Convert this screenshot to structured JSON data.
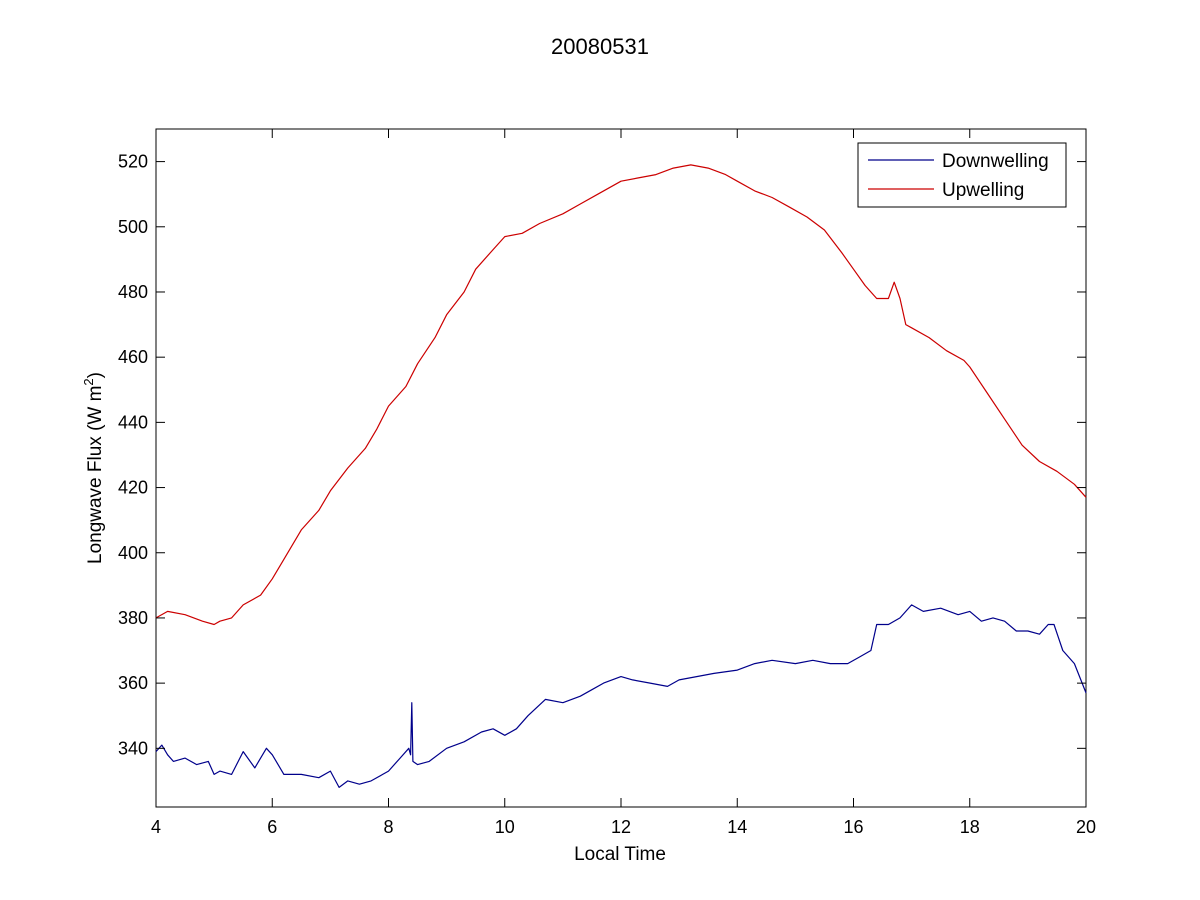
{
  "chart_data": {
    "type": "line",
    "title": "20080531",
    "xlabel": "Local Time",
    "ylabel": "Longwave Flux (W m",
    "ylabel_superscript": "2",
    "ylabel_close": ")",
    "xlim": [
      4,
      20
    ],
    "ylim": [
      322,
      530
    ],
    "xticks": [
      4,
      6,
      8,
      10,
      12,
      14,
      16,
      18,
      20
    ],
    "yticks": [
      340,
      360,
      380,
      400,
      420,
      440,
      460,
      480,
      500,
      520
    ],
    "grid": false,
    "legend_position": "top-right",
    "series": [
      {
        "name": "Downwelling",
        "color": "#00008B",
        "x": [
          4.0,
          4.1,
          4.2,
          4.3,
          4.5,
          4.7,
          4.9,
          5.0,
          5.1,
          5.3,
          5.5,
          5.7,
          5.9,
          6.0,
          6.2,
          6.5,
          6.8,
          7.0,
          7.15,
          7.3,
          7.5,
          7.7,
          8.0,
          8.2,
          8.35,
          8.38,
          8.4,
          8.42,
          8.5,
          8.7,
          9.0,
          9.3,
          9.6,
          9.8,
          10.0,
          10.2,
          10.4,
          10.7,
          11.0,
          11.3,
          11.5,
          11.7,
          12.0,
          12.2,
          12.5,
          12.8,
          13.0,
          13.3,
          13.6,
          14.0,
          14.3,
          14.6,
          15.0,
          15.3,
          15.6,
          15.9,
          16.1,
          16.3,
          16.4,
          16.6,
          16.8,
          17.0,
          17.2,
          17.5,
          17.8,
          18.0,
          18.2,
          18.4,
          18.6,
          18.8,
          19.0,
          19.2,
          19.35,
          19.45,
          19.6,
          19.8,
          20.0
        ],
        "y": [
          339,
          341,
          338,
          336,
          337,
          335,
          336,
          332,
          333,
          332,
          339,
          334,
          340,
          338,
          332,
          332,
          331,
          333,
          328,
          330,
          329,
          330,
          333,
          337,
          340,
          338,
          354,
          336,
          335,
          336,
          340,
          342,
          345,
          346,
          344,
          346,
          350,
          355,
          354,
          356,
          358,
          360,
          362,
          361,
          360,
          359,
          361,
          362,
          363,
          364,
          366,
          367,
          366,
          367,
          366,
          366,
          368,
          370,
          378,
          378,
          380,
          384,
          382,
          383,
          381,
          382,
          379,
          380,
          379,
          376,
          376,
          375,
          378,
          378,
          370,
          366,
          357
        ]
      },
      {
        "name": "Upwelling",
        "color": "#CC0000",
        "x": [
          4.0,
          4.2,
          4.5,
          4.8,
          5.0,
          5.1,
          5.3,
          5.5,
          5.8,
          6.0,
          6.2,
          6.5,
          6.8,
          7.0,
          7.3,
          7.6,
          7.8,
          8.0,
          8.3,
          8.5,
          8.8,
          9.0,
          9.3,
          9.5,
          9.8,
          10.0,
          10.3,
          10.6,
          11.0,
          11.3,
          11.6,
          11.8,
          12.0,
          12.3,
          12.6,
          12.9,
          13.2,
          13.5,
          13.8,
          14.0,
          14.3,
          14.6,
          14.9,
          15.2,
          15.5,
          15.8,
          16.0,
          16.2,
          16.4,
          16.6,
          16.7,
          16.8,
          16.9,
          17.0,
          17.3,
          17.6,
          17.9,
          18.0,
          18.3,
          18.6,
          18.9,
          19.2,
          19.5,
          19.8,
          20.0
        ],
        "y": [
          380,
          382,
          381,
          379,
          378,
          379,
          380,
          384,
          387,
          392,
          398,
          407,
          413,
          419,
          426,
          432,
          438,
          445,
          451,
          458,
          466,
          473,
          480,
          487,
          493,
          497,
          498,
          501,
          504,
          507,
          510,
          512,
          514,
          515,
          516,
          518,
          519,
          518,
          516,
          514,
          511,
          509,
          506,
          503,
          499,
          492,
          487,
          482,
          478,
          478,
          483,
          478,
          470,
          469,
          466,
          462,
          459,
          457,
          449,
          441,
          433,
          428,
          425,
          421,
          417
        ]
      }
    ]
  }
}
